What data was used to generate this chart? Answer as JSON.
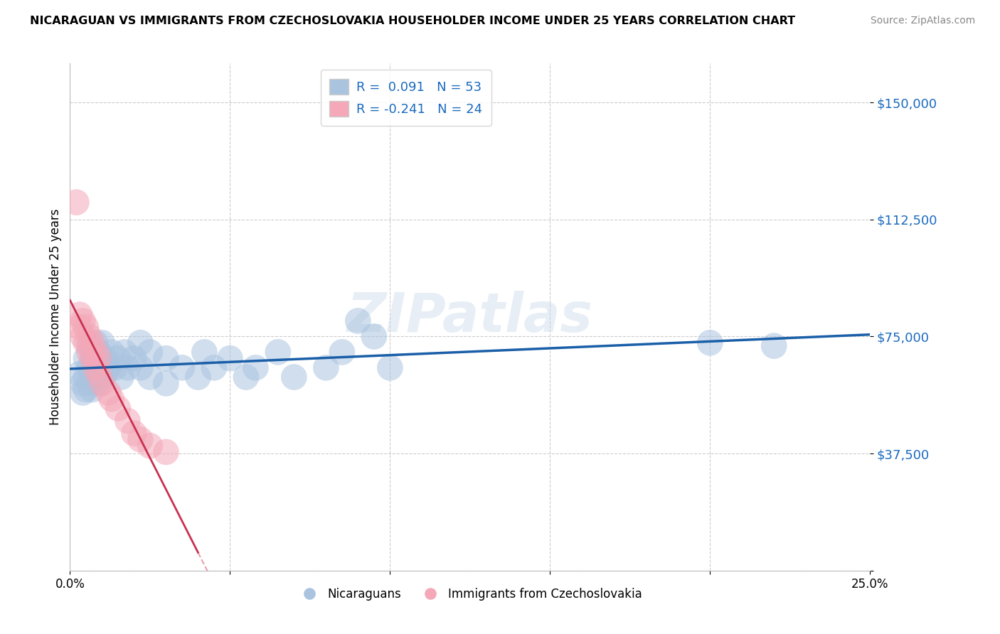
{
  "title": "NICARAGUAN VS IMMIGRANTS FROM CZECHOSLOVAKIA HOUSEHOLDER INCOME UNDER 25 YEARS CORRELATION CHART",
  "source": "Source: ZipAtlas.com",
  "ylabel": "Householder Income Under 25 years",
  "xlim": [
    0.0,
    0.25
  ],
  "ylim": [
    0,
    162500
  ],
  "yticks": [
    0,
    37500,
    75000,
    112500,
    150000
  ],
  "ytick_labels": [
    "",
    "$37,500",
    "$75,000",
    "$112,500",
    "$150,000"
  ],
  "xticks": [
    0.0,
    0.05,
    0.1,
    0.15,
    0.2,
    0.25
  ],
  "xtick_labels": [
    "0.0%",
    "",
    "",
    "",
    "",
    "25.0%"
  ],
  "legend1_r": " 0.091",
  "legend1_n": "53",
  "legend2_r": "-0.241",
  "legend2_n": "24",
  "blue_color": "#aac4e0",
  "pink_color": "#f4a8b8",
  "line_blue": "#1a5fa8",
  "line_pink_solid": "#c83050",
  "line_pink_dash": "#e8a0b0",
  "watermark": "ZIPatlas",
  "nicaraguan_points": [
    [
      0.003,
      63000
    ],
    [
      0.004,
      60000
    ],
    [
      0.004,
      57000
    ],
    [
      0.005,
      68000
    ],
    [
      0.005,
      62000
    ],
    [
      0.005,
      58000
    ],
    [
      0.006,
      72000
    ],
    [
      0.006,
      65000
    ],
    [
      0.006,
      60000
    ],
    [
      0.007,
      68000
    ],
    [
      0.007,
      63000
    ],
    [
      0.007,
      58000
    ],
    [
      0.008,
      73000
    ],
    [
      0.008,
      67000
    ],
    [
      0.008,
      62000
    ],
    [
      0.009,
      70000
    ],
    [
      0.009,
      65000
    ],
    [
      0.009,
      60000
    ],
    [
      0.01,
      73000
    ],
    [
      0.01,
      67000
    ],
    [
      0.01,
      62000
    ],
    [
      0.011,
      68000
    ],
    [
      0.011,
      63000
    ],
    [
      0.012,
      65000
    ],
    [
      0.013,
      70000
    ],
    [
      0.014,
      65000
    ],
    [
      0.015,
      68000
    ],
    [
      0.016,
      62000
    ],
    [
      0.017,
      70000
    ],
    [
      0.018,
      65000
    ],
    [
      0.02,
      68000
    ],
    [
      0.022,
      73000
    ],
    [
      0.022,
      65000
    ],
    [
      0.025,
      70000
    ],
    [
      0.025,
      62000
    ],
    [
      0.03,
      68000
    ],
    [
      0.03,
      60000
    ],
    [
      0.035,
      65000
    ],
    [
      0.04,
      62000
    ],
    [
      0.042,
      70000
    ],
    [
      0.045,
      65000
    ],
    [
      0.05,
      68000
    ],
    [
      0.055,
      62000
    ],
    [
      0.058,
      65000
    ],
    [
      0.065,
      70000
    ],
    [
      0.07,
      62000
    ],
    [
      0.08,
      65000
    ],
    [
      0.085,
      70000
    ],
    [
      0.09,
      80000
    ],
    [
      0.095,
      75000
    ],
    [
      0.1,
      65000
    ],
    [
      0.2,
      73000
    ],
    [
      0.22,
      72000
    ]
  ],
  "czech_points": [
    [
      0.002,
      118000
    ],
    [
      0.003,
      82000
    ],
    [
      0.003,
      78000
    ],
    [
      0.004,
      80000
    ],
    [
      0.004,
      75000
    ],
    [
      0.005,
      78000
    ],
    [
      0.005,
      73000
    ],
    [
      0.006,
      75000
    ],
    [
      0.006,
      70000
    ],
    [
      0.007,
      73000
    ],
    [
      0.007,
      68000
    ],
    [
      0.008,
      70000
    ],
    [
      0.008,
      65000
    ],
    [
      0.009,
      68000
    ],
    [
      0.009,
      63000
    ],
    [
      0.01,
      60000
    ],
    [
      0.012,
      57000
    ],
    [
      0.013,
      55000
    ],
    [
      0.015,
      52000
    ],
    [
      0.018,
      48000
    ],
    [
      0.02,
      44000
    ],
    [
      0.022,
      42000
    ],
    [
      0.025,
      40000
    ],
    [
      0.03,
      38000
    ]
  ]
}
